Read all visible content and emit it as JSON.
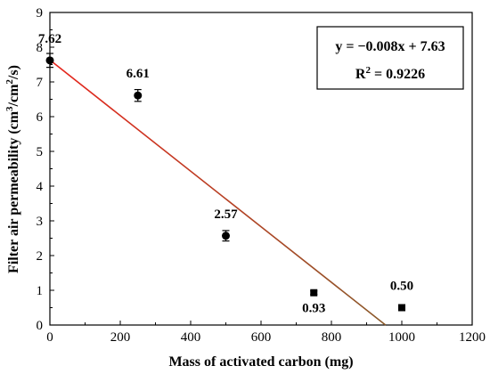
{
  "chart_data": {
    "type": "scatter",
    "title": "",
    "xlabel": "Mass of activated carbon (mg)",
    "ylabel": {
      "main": "Filter air permeability (cm",
      "sup1": "3",
      "mid": "/cm",
      "sup2": "2",
      "end": "/s)"
    },
    "xlim": [
      0,
      1200
    ],
    "ylim": [
      0,
      9
    ],
    "xticks": [
      0,
      200,
      400,
      600,
      800,
      1000,
      1200
    ],
    "yticks": [
      0,
      1,
      2,
      3,
      4,
      5,
      6,
      7,
      8,
      9
    ],
    "grid": false,
    "points": [
      {
        "x": 0,
        "y": 7.62,
        "err": 0.2,
        "label": "7.62"
      },
      {
        "x": 250,
        "y": 6.61,
        "err": 0.17,
        "label": "6.61"
      },
      {
        "x": 500,
        "y": 2.57,
        "err": 0.15,
        "label": "2.57"
      },
      {
        "x": 750,
        "y": 0.93,
        "err": 0.05,
        "label": "0.93"
      },
      {
        "x": 1000,
        "y": 0.5,
        "err": 0.06,
        "label": "0.50"
      }
    ],
    "fit": {
      "slope": -0.008,
      "intercept": 7.63,
      "x_start": 0,
      "x_end": 953.75,
      "equation": "y = −0.008x + 7.63",
      "r2_prefix": "R",
      "r2_sup": "2",
      "r2_value": " = 0.9226",
      "color_start": "#e8241c",
      "color_end": "#8a5a2b"
    },
    "equation_box_position": "top-right"
  }
}
